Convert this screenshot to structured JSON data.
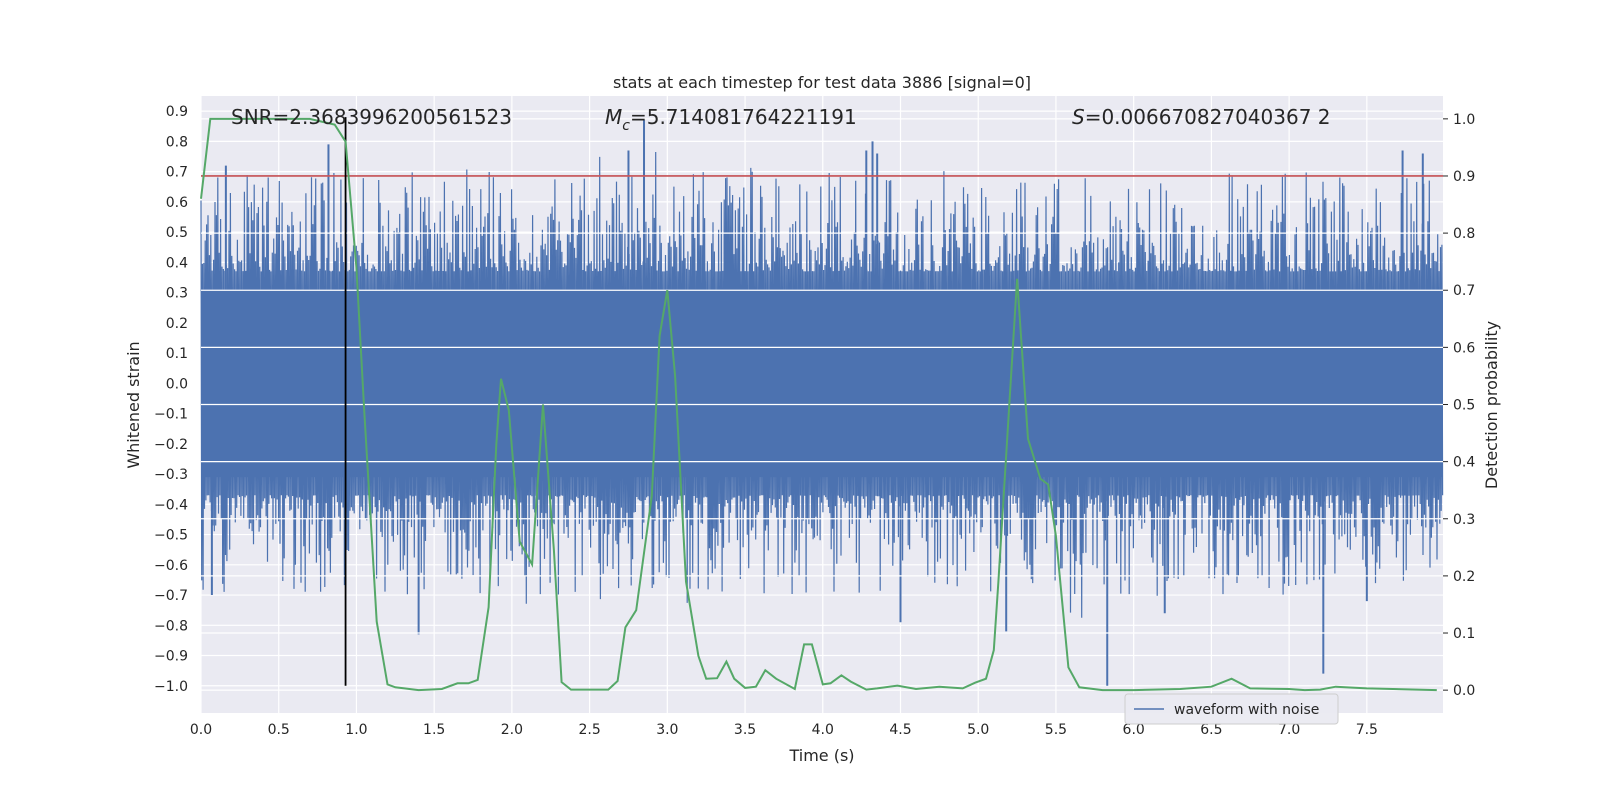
{
  "chart_data": {
    "type": "line",
    "title": "stats at each timestep for test data 3886 [signal=0]",
    "xlabel": "Time (s)",
    "ylabel": "Whitened strain",
    "y2label": "Detection probability",
    "xlim": [
      0.0,
      7.99
    ],
    "ylim": [
      -1.09,
      0.95
    ],
    "y2lim": [
      -0.04,
      1.04
    ],
    "xticks": [
      "0.0",
      "0.5",
      "1.0",
      "1.5",
      "2.0",
      "2.5",
      "3.0",
      "3.5",
      "4.0",
      "4.5",
      "5.0",
      "5.5",
      "6.0",
      "6.5",
      "7.0",
      "7.5"
    ],
    "yticks": [
      "0.9",
      "0.8",
      "0.7",
      "0.6",
      "0.5",
      "0.4",
      "0.3",
      "0.2",
      "0.1",
      "0.0",
      "−0.1",
      "−0.2",
      "−0.3",
      "−0.4",
      "−0.5",
      "−0.6",
      "−0.7",
      "−0.8",
      "−0.9",
      "−1.0"
    ],
    "y2ticks": [
      "1.0",
      "0.9",
      "0.8",
      "0.7",
      "0.6",
      "0.5",
      "0.4",
      "0.3",
      "0.2",
      "0.1",
      "0.0"
    ],
    "annotations": {
      "snr": "SNR=2.3683996200561523",
      "mc_symbol": "M",
      "mc_sub": "c",
      "mc_value": "=5.714081764221191",
      "s_symbol": "S",
      "s_value": "=0.006670827040367 2"
    },
    "legend": {
      "label": "waveform with noise",
      "placement": "lower-right"
    },
    "threshold_line": {
      "axis": "right",
      "value": 0.9,
      "color": "#c44e52"
    },
    "marker_line": {
      "x": 0.93,
      "y_from": -1.0,
      "y_to": 0.88,
      "color": "#000000"
    },
    "waveform": {
      "name": "waveform with noise",
      "color": "#4c72b0",
      "core_amplitude": 0.31,
      "spikes": [
        {
          "x": 0.16,
          "y": 0.72
        },
        {
          "x": 0.82,
          "y": 0.79
        },
        {
          "x": 2.75,
          "y": 0.77
        },
        {
          "x": 2.85,
          "y": 0.87
        },
        {
          "x": 4.28,
          "y": 0.77
        },
        {
          "x": 4.32,
          "y": 0.8
        },
        {
          "x": 4.35,
          "y": 0.76
        },
        {
          "x": 7.73,
          "y": 0.77
        },
        {
          "x": 7.86,
          "y": 0.76
        },
        {
          "x": 0.07,
          "y": -0.7
        },
        {
          "x": 1.4,
          "y": -0.83
        },
        {
          "x": 4.5,
          "y": -0.79
        },
        {
          "x": 5.18,
          "y": -0.82
        },
        {
          "x": 5.83,
          "y": -1.0
        },
        {
          "x": 7.22,
          "y": -0.96
        },
        {
          "x": 6.2,
          "y": -0.76
        },
        {
          "x": 7.5,
          "y": -0.72
        }
      ]
    },
    "series": [
      {
        "name": "detection probability",
        "axis": "right",
        "color": "#55a868",
        "x": [
          0.0,
          0.06,
          0.15,
          0.3,
          0.5,
          0.7,
          0.86,
          0.93,
          1.0,
          1.05,
          1.1,
          1.13,
          1.2,
          1.25,
          1.4,
          1.55,
          1.65,
          1.72,
          1.78,
          1.85,
          1.9,
          1.93,
          1.98,
          2.05,
          2.13,
          2.2,
          2.27,
          2.32,
          2.38,
          2.5,
          2.62,
          2.68,
          2.73,
          2.8,
          2.9,
          2.95,
          3.0,
          3.05,
          3.12,
          3.2,
          3.25,
          3.32,
          3.38,
          3.43,
          3.5,
          3.57,
          3.63,
          3.7,
          3.82,
          3.88,
          3.93,
          4.0,
          4.05,
          4.12,
          4.18,
          4.28,
          4.35,
          4.48,
          4.6,
          4.75,
          4.9,
          4.98,
          5.05,
          5.1,
          5.13,
          5.2,
          5.25,
          5.32,
          5.4,
          5.45,
          5.5,
          5.58,
          5.65,
          5.8,
          6.0,
          6.3,
          6.5,
          6.63,
          6.75,
          7.0,
          7.1,
          7.2,
          7.3,
          7.5,
          7.95
        ],
        "values": [
          0.86,
          1.0,
          1.0,
          1.0,
          1.0,
          1.0,
          0.99,
          0.96,
          0.74,
          0.49,
          0.26,
          0.12,
          0.01,
          0.005,
          0.0,
          0.002,
          0.012,
          0.012,
          0.018,
          0.145,
          0.43,
          0.545,
          0.49,
          0.26,
          0.22,
          0.5,
          0.245,
          0.014,
          0.001,
          0.001,
          0.001,
          0.016,
          0.11,
          0.14,
          0.34,
          0.62,
          0.7,
          0.55,
          0.19,
          0.06,
          0.02,
          0.021,
          0.05,
          0.02,
          0.004,
          0.006,
          0.035,
          0.02,
          0.002,
          0.08,
          0.08,
          0.01,
          0.012,
          0.026,
          0.015,
          0.001,
          0.003,
          0.008,
          0.002,
          0.006,
          0.003,
          0.013,
          0.02,
          0.07,
          0.19,
          0.5,
          0.72,
          0.44,
          0.37,
          0.36,
          0.27,
          0.04,
          0.005,
          0.0,
          0.0,
          0.002,
          0.006,
          0.02,
          0.003,
          0.002,
          0.0,
          0.001,
          0.006,
          0.003,
          0.0
        ]
      }
    ]
  }
}
